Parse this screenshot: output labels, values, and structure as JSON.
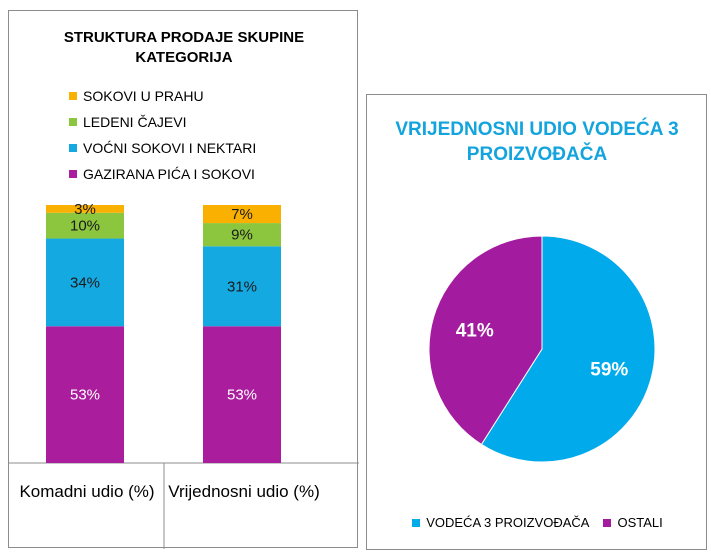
{
  "colors": {
    "sokovi_u_prahu": "#f9b000",
    "ledeni_cajevi": "#8cc63e",
    "vocni_sokovi": "#14a9e1",
    "gazirana": "#aa1e9e",
    "pie_leading": "#00aaeb",
    "pie_other": "#a31c9f",
    "right_title": "#13a4dd"
  },
  "chart_data": [
    {
      "type": "bar",
      "stacked": true,
      "title": "STRUKTURA PRODAJE SKUPINE KATEGORIJA",
      "categories": [
        "Komadni udio (%)",
        "Vrijednosni udio (%)"
      ],
      "ylim": [
        0,
        100
      ],
      "series": [
        {
          "name": "GAZIRANA PIĆA I SOKOVI",
          "color": "#aa1e9e",
          "values": [
            53,
            53
          ],
          "labels": [
            "53%",
            "53%"
          ],
          "label_color": "#ffffff"
        },
        {
          "name": "VOĆNI SOKOVI I NEKTARI",
          "color": "#14a9e1",
          "values": [
            34,
            31
          ],
          "labels": [
            "34%",
            "31%"
          ],
          "label_color": "#1a1a1a"
        },
        {
          "name": "LEDENI ČAJEVI",
          "color": "#8cc63e",
          "values": [
            10,
            9
          ],
          "labels": [
            "10%",
            "9%"
          ],
          "label_color": "#1a1a1a"
        },
        {
          "name": "SOKOVI U PRAHU",
          "color": "#f9b000",
          "values": [
            3,
            7
          ],
          "labels": [
            "3%",
            "7%"
          ],
          "label_color": "#1a1a1a"
        }
      ],
      "legend_order": [
        "SOKOVI U PRAHU",
        "LEDENI ČAJEVI",
        "VOĆNI SOKOVI I NEKTARI",
        "GAZIRANA PIĆA I SOKOVI"
      ],
      "legend_position": "top",
      "grid": false
    },
    {
      "type": "pie",
      "title": "VRIJEDNOSNI UDIO VODEĆA 3 PROIZVOĐAČA",
      "slices": [
        {
          "name": "VODEĆA 3 PROIZVOĐAČA",
          "value": 59,
          "label": "59%",
          "color": "#00aaeb"
        },
        {
          "name": "OSTALI",
          "value": 41,
          "label": "41%",
          "color": "#a31c9f"
        }
      ],
      "legend_position": "bottom"
    }
  ]
}
